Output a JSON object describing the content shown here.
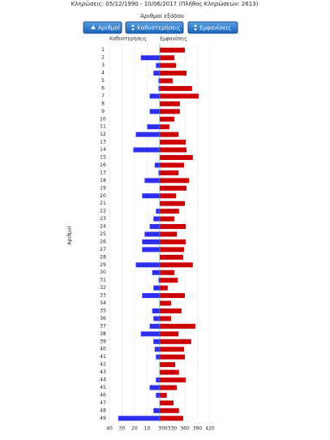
{
  "header": "Κληρώσεις:    05/12/1990 - 10/06/2017  (Πλήθος Κληρώσεων: 2613)",
  "buttons": [
    "Αριθμοί",
    "Καθυστερήσεις",
    "Εμφανίσεις"
  ],
  "chart_data": {
    "type": "butterfly",
    "title": "Αριθμοί εξόδου",
    "y_label": "Αριθμοί",
    "categories": [
      "1",
      "2",
      "3",
      "4",
      "5",
      "6",
      "7",
      "8",
      "9",
      "10",
      "11",
      "12",
      "13",
      "14",
      "15",
      "16",
      "17",
      "18",
      "19",
      "20",
      "21",
      "22",
      "23",
      "24",
      "25",
      "26",
      "27",
      "28",
      "29",
      "30",
      "31",
      "32",
      "33",
      "34",
      "35",
      "36",
      "37",
      "38",
      "39",
      "40",
      "41",
      "42",
      "43",
      "44",
      "45",
      "46",
      "47",
      "48",
      "49"
    ],
    "series": [
      {
        "name": "Καθυστερήσεις",
        "color": "#2e2ef0",
        "axis": "x",
        "values": [
          0,
          15,
          3,
          5,
          1,
          1,
          8,
          0,
          8,
          0,
          10,
          19,
          0,
          21,
          0,
          4,
          1,
          12,
          0,
          14,
          0,
          3,
          5,
          8,
          12,
          14,
          14,
          0,
          19,
          6,
          1,
          5,
          14,
          0,
          6,
          5,
          8,
          15,
          5,
          4,
          3,
          0,
          0,
          3,
          8,
          3,
          0,
          5,
          33
        ]
      },
      {
        "name": "Εμφανίσεις",
        "color": "#cc0000",
        "axis": "x2",
        "values": [
          360,
          335,
          339,
          364,
          331,
          377,
          393,
          348,
          348,
          335,
          323,
          345,
          362,
          364,
          379,
          358,
          345,
          370,
          364,
          339,
          360,
          346,
          335,
          362,
          341,
          362,
          358,
          356,
          379,
          335,
          343,
          319,
          360,
          327,
          352,
          327,
          385,
          345,
          375,
          358,
          360,
          337,
          346,
          362,
          341,
          317,
          333,
          346,
          356
        ]
      }
    ],
    "xlim": [
      0,
      40
    ],
    "xticks": [
      10,
      20,
      30,
      40
    ],
    "x2lim": [
      300,
      420
    ],
    "x2ticks": [
      300,
      330,
      360,
      390,
      420
    ],
    "grid": true
  }
}
